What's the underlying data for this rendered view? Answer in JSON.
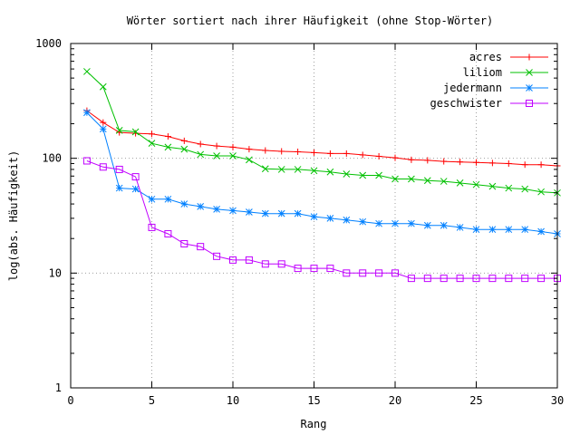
{
  "chart_data": {
    "type": "line",
    "title": "Wörter sortiert nach ihrer Häufigkeit (ohne Stop-Wörter)",
    "xlabel": "Rang",
    "ylabel": "log(abs. Häufigkeit)",
    "xlim": [
      0,
      30
    ],
    "ylim": [
      1,
      1000
    ],
    "yscale": "log",
    "grid": true,
    "legend": "top-right",
    "x_ticks": [
      0,
      5,
      10,
      15,
      20,
      25,
      30
    ],
    "x_tick_labels": [
      "0",
      "5",
      "10",
      "15",
      "20",
      "25",
      "30"
    ],
    "y_ticks": [
      1,
      10,
      100,
      1000
    ],
    "y_tick_labels": [
      "1",
      "10",
      "100",
      "1000"
    ],
    "x": [
      1,
      2,
      3,
      4,
      5,
      6,
      7,
      8,
      9,
      10,
      11,
      12,
      13,
      14,
      15,
      16,
      17,
      18,
      19,
      20,
      21,
      22,
      23,
      24,
      25,
      26,
      27,
      28,
      29,
      30
    ],
    "series": [
      {
        "name": "acres",
        "color": "#ff0000",
        "marker": "plus",
        "values": [
          260,
          205,
          168,
          165,
          163,
          155,
          142,
          133,
          128,
          125,
          120,
          117,
          115,
          114,
          112,
          110,
          110,
          107,
          104,
          101,
          97,
          96,
          94,
          93,
          92,
          91,
          90,
          88,
          88,
          86
        ]
      },
      {
        "name": "liliom",
        "color": "#00c000",
        "marker": "cross",
        "values": [
          570,
          420,
          175,
          170,
          135,
          125,
          120,
          108,
          105,
          105,
          97,
          81,
          80,
          80,
          78,
          76,
          73,
          71,
          71,
          66,
          66,
          64,
          63,
          61,
          59,
          57,
          55,
          54,
          51,
          50
        ]
      },
      {
        "name": "jedermann",
        "color": "#0080ff",
        "marker": "star",
        "values": [
          250,
          180,
          55,
          54,
          44,
          44,
          40,
          38,
          36,
          35,
          34,
          33,
          33,
          33,
          31,
          30,
          29,
          28,
          27,
          27,
          27,
          26,
          26,
          25,
          24,
          24,
          24,
          24,
          23,
          22
        ]
      },
      {
        "name": "geschwister",
        "color": "#c000ff",
        "marker": "square",
        "values": [
          95,
          84,
          80,
          69,
          25,
          22,
          18,
          17,
          14,
          13,
          13,
          12,
          12,
          11,
          11,
          11,
          10,
          10,
          10,
          10,
          9,
          9,
          9,
          9,
          9,
          9,
          9,
          9,
          9,
          9
        ]
      }
    ]
  }
}
